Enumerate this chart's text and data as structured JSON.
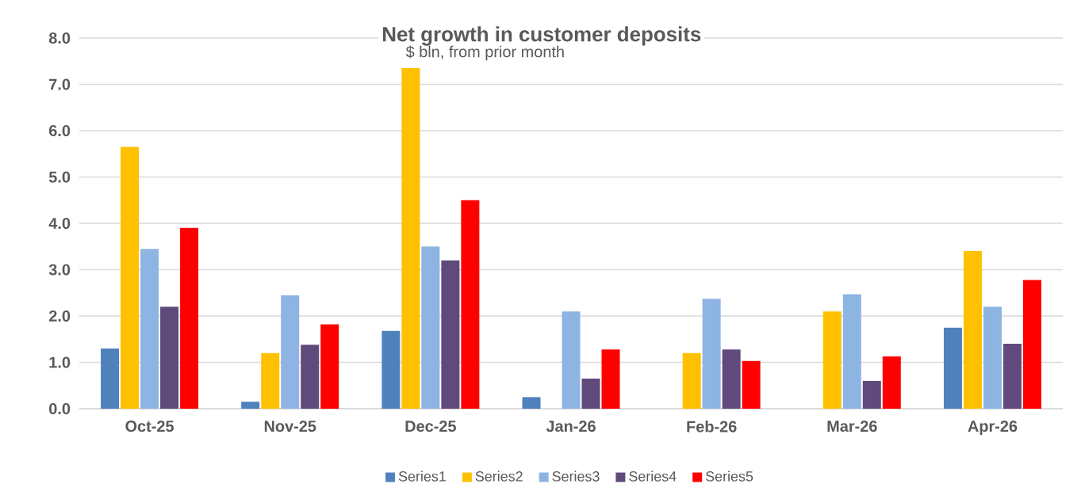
{
  "chart_data": {
    "type": "bar",
    "title": "Net growth in customer deposits",
    "subtitle": "$ bln, from prior month",
    "categories": [
      "Oct-25",
      "Nov-25",
      "Dec-25",
      "Jan-26",
      "Feb-26",
      "Mar-26",
      "Apr-26"
    ],
    "series": [
      {
        "name": "Series1",
        "color": "#4f81bd",
        "values": [
          1.3,
          0.15,
          1.68,
          0.25,
          null,
          null,
          1.75
        ]
      },
      {
        "name": "Series2",
        "color": "#ffc000",
        "values": [
          5.65,
          1.2,
          7.35,
          null,
          1.2,
          2.1,
          3.4
        ]
      },
      {
        "name": "Series3",
        "color": "#8db4e2",
        "values": [
          3.45,
          2.45,
          3.5,
          2.1,
          2.37,
          2.47,
          2.2
        ]
      },
      {
        "name": "Series4",
        "color": "#604a7b",
        "values": [
          2.2,
          1.38,
          3.2,
          0.65,
          1.28,
          0.6,
          1.4
        ]
      },
      {
        "name": "Series5",
        "color": "#ff0000",
        "values": [
          3.9,
          1.82,
          4.5,
          1.28,
          1.03,
          1.13,
          2.78
        ]
      }
    ],
    "ylim": [
      0,
      8
    ],
    "yticks": [
      {
        "value": 0,
        "label": "0.0"
      },
      {
        "value": 1,
        "label": "1.0"
      },
      {
        "value": 2,
        "label": "2.0"
      },
      {
        "value": 3,
        "label": "3.0"
      },
      {
        "value": 4,
        "label": "4.0"
      },
      {
        "value": 5,
        "label": "5.0"
      },
      {
        "value": 6,
        "label": "6.0"
      },
      {
        "value": 7,
        "label": "7.0"
      },
      {
        "value": 8,
        "label": "8.0"
      }
    ],
    "grid": "y",
    "legend": "bottom"
  }
}
